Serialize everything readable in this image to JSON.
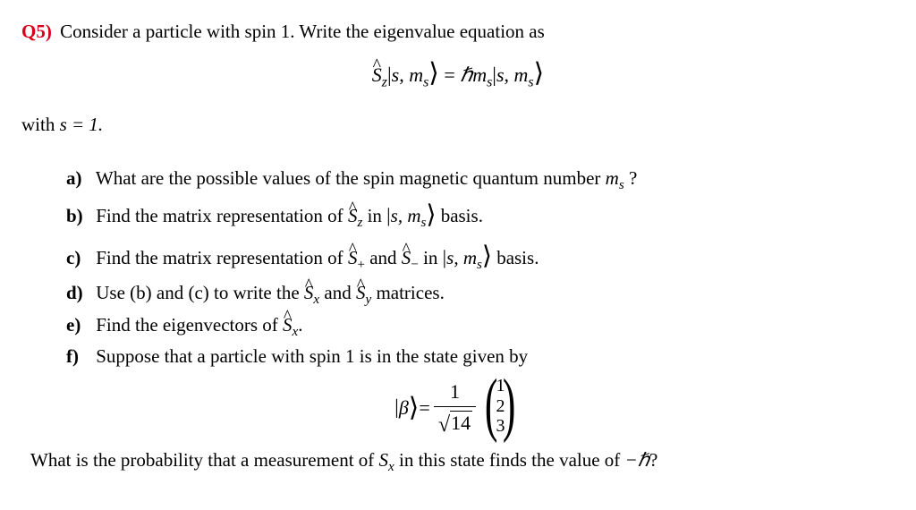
{
  "question": {
    "label": "Q5)",
    "intro": "Consider a particle with spin 1. Write the eigenvalue equation as",
    "equation": {
      "op": "S",
      "op_sub": "z",
      "ket_s": "s",
      "ket_ms": "m",
      "ket_ms_sub": "s",
      "rhs_sym": "ℏm",
      "rhs_sub": "s"
    },
    "with_text": "with ",
    "with_eq": "s = 1."
  },
  "parts": {
    "labels": {
      "a": "a)",
      "b": "b)",
      "c": "c)",
      "d": "d)",
      "e": "e)",
      "f": "f)"
    },
    "a": {
      "t1": "What are the possible values of the spin magnetic quantum number ",
      "sym": "m",
      "sub": "s",
      "t2": " ?"
    },
    "b": {
      "t1": "Find the matrix representation of ",
      "op": "S",
      "opsub": "z",
      "t2": " in ",
      "ket": "s, m",
      "ketsub": "s",
      "t3": " basis."
    },
    "c": {
      "t1": "Find the matrix representation of ",
      "op": "S",
      "opsub1": "+",
      "mid": " and ",
      "opsub2": "−",
      "t2": " in ",
      "ket": "s, m",
      "ketsub": "s",
      "t3": " basis."
    },
    "d": {
      "t1": "Use (b) and (c) to write the ",
      "op": "S",
      "opsub1": "x",
      "mid": " and ",
      "opsub2": "y",
      "t2": " matrices."
    },
    "e": {
      "t1": "Find the eigenvectors of ",
      "op": "S",
      "opsub": "x",
      "t2": "."
    },
    "f": {
      "t1": "Suppose that a particle with spin 1 is in the state given by"
    }
  },
  "vector": {
    "lhs": "β",
    "eq": " = ",
    "num": "1",
    "den": "14",
    "entries": [
      "1",
      "2",
      "3"
    ]
  },
  "final": {
    "t1": "What is the probability that a measurement of ",
    "sym": "S",
    "sub": "x",
    "t2": " in this state finds the value of ",
    "val": "−ℏ",
    "t3": "?"
  },
  "style": {
    "q_color": "#d9001b",
    "text_color": "#000000",
    "body_fontsize": 21,
    "dims": [
      1024,
      570
    ]
  }
}
